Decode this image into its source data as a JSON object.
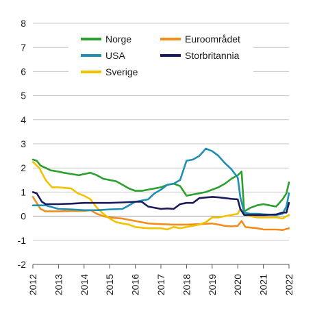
{
  "chart_data": {
    "type": "line",
    "title": "",
    "xlabel": "",
    "ylabel": "",
    "xlim": [
      2012,
      2022
    ],
    "ylim": [
      -2,
      8
    ],
    "x_ticks": [
      "2012",
      "2013",
      "2014",
      "2015",
      "2016",
      "2017",
      "2018",
      "2019",
      "2020",
      "2021",
      "2022"
    ],
    "y_ticks": [
      "-2",
      "-1",
      "0",
      "1",
      "2",
      "3",
      "4",
      "5",
      "6",
      "7",
      "8"
    ],
    "grid": "horizontal",
    "legend_position": "top",
    "series": [
      {
        "name": "Norge",
        "color": "#2ca02c",
        "points": [
          [
            2012.0,
            2.35
          ],
          [
            2012.15,
            2.3
          ],
          [
            2012.3,
            2.1
          ],
          [
            2012.5,
            2.0
          ],
          [
            2012.7,
            1.9
          ],
          [
            2013.0,
            1.85
          ],
          [
            2013.2,
            1.8
          ],
          [
            2013.5,
            1.75
          ],
          [
            2013.8,
            1.7
          ],
          [
            2014.0,
            1.75
          ],
          [
            2014.25,
            1.8
          ],
          [
            2014.5,
            1.7
          ],
          [
            2014.75,
            1.55
          ],
          [
            2015.0,
            1.5
          ],
          [
            2015.25,
            1.45
          ],
          [
            2015.5,
            1.3
          ],
          [
            2015.75,
            1.15
          ],
          [
            2016.0,
            1.05
          ],
          [
            2016.25,
            1.05
          ],
          [
            2016.5,
            1.1
          ],
          [
            2016.75,
            1.15
          ],
          [
            2017.0,
            1.2
          ],
          [
            2017.25,
            1.3
          ],
          [
            2017.5,
            1.35
          ],
          [
            2017.75,
            1.25
          ],
          [
            2018.0,
            0.85
          ],
          [
            2018.25,
            0.9
          ],
          [
            2018.5,
            0.95
          ],
          [
            2018.75,
            1.0
          ],
          [
            2019.0,
            1.1
          ],
          [
            2019.25,
            1.2
          ],
          [
            2019.5,
            1.35
          ],
          [
            2019.75,
            1.55
          ],
          [
            2020.0,
            1.7
          ],
          [
            2020.15,
            1.85
          ],
          [
            2020.25,
            0.2
          ],
          [
            2020.5,
            0.35
          ],
          [
            2020.75,
            0.45
          ],
          [
            2021.0,
            0.5
          ],
          [
            2021.25,
            0.45
          ],
          [
            2021.5,
            0.4
          ],
          [
            2021.75,
            0.7
          ],
          [
            2021.9,
            0.95
          ],
          [
            2022.0,
            1.4
          ]
        ]
      },
      {
        "name": "USA",
        "color": "#1f8fb3",
        "points": [
          [
            2012.0,
            0.45
          ],
          [
            2012.5,
            0.45
          ],
          [
            2013.0,
            0.3
          ],
          [
            2013.5,
            0.28
          ],
          [
            2014.0,
            0.25
          ],
          [
            2014.5,
            0.25
          ],
          [
            2015.0,
            0.28
          ],
          [
            2015.5,
            0.3
          ],
          [
            2015.75,
            0.45
          ],
          [
            2016.0,
            0.6
          ],
          [
            2016.5,
            0.7
          ],
          [
            2016.75,
            0.95
          ],
          [
            2017.0,
            1.1
          ],
          [
            2017.25,
            1.3
          ],
          [
            2017.5,
            1.35
          ],
          [
            2017.75,
            1.5
          ],
          [
            2018.0,
            2.3
          ],
          [
            2018.25,
            2.35
          ],
          [
            2018.5,
            2.5
          ],
          [
            2018.75,
            2.8
          ],
          [
            2019.0,
            2.7
          ],
          [
            2019.25,
            2.5
          ],
          [
            2019.5,
            2.2
          ],
          [
            2019.75,
            1.95
          ],
          [
            2020.0,
            1.6
          ],
          [
            2020.1,
            0.8
          ],
          [
            2020.25,
            0.15
          ],
          [
            2020.5,
            0.1
          ],
          [
            2020.75,
            0.1
          ],
          [
            2021.0,
            0.08
          ],
          [
            2021.5,
            0.05
          ],
          [
            2021.75,
            0.1
          ],
          [
            2021.9,
            0.4
          ],
          [
            2022.0,
            0.95
          ]
        ]
      },
      {
        "name": "Sverige",
        "color": "#f2c200",
        "points": [
          [
            2012.0,
            2.25
          ],
          [
            2012.25,
            2.0
          ],
          [
            2012.5,
            1.5
          ],
          [
            2012.75,
            1.2
          ],
          [
            2013.0,
            1.2
          ],
          [
            2013.5,
            1.15
          ],
          [
            2013.75,
            0.95
          ],
          [
            2014.0,
            0.85
          ],
          [
            2014.25,
            0.7
          ],
          [
            2014.5,
            0.35
          ],
          [
            2014.75,
            0.1
          ],
          [
            2015.0,
            -0.1
          ],
          [
            2015.25,
            -0.25
          ],
          [
            2015.5,
            -0.3
          ],
          [
            2015.75,
            -0.35
          ],
          [
            2016.0,
            -0.45
          ],
          [
            2016.5,
            -0.5
          ],
          [
            2017.0,
            -0.5
          ],
          [
            2017.25,
            -0.55
          ],
          [
            2017.5,
            -0.45
          ],
          [
            2017.75,
            -0.5
          ],
          [
            2018.0,
            -0.45
          ],
          [
            2018.25,
            -0.4
          ],
          [
            2018.5,
            -0.35
          ],
          [
            2018.75,
            -0.25
          ],
          [
            2019.0,
            -0.05
          ],
          [
            2019.25,
            -0.05
          ],
          [
            2019.5,
            0.0
          ],
          [
            2019.75,
            0.05
          ],
          [
            2020.0,
            0.1
          ],
          [
            2020.1,
            0.3
          ],
          [
            2020.25,
            0.1
          ],
          [
            2020.5,
            0.0
          ],
          [
            2020.75,
            -0.05
          ],
          [
            2021.0,
            -0.05
          ],
          [
            2021.5,
            -0.05
          ],
          [
            2021.75,
            -0.1
          ],
          [
            2022.0,
            0.05
          ]
        ]
      },
      {
        "name": "Euroområdet",
        "color": "#f28c1a",
        "points": [
          [
            2012.0,
            0.8
          ],
          [
            2012.15,
            0.55
          ],
          [
            2012.3,
            0.3
          ],
          [
            2012.5,
            0.2
          ],
          [
            2013.0,
            0.2
          ],
          [
            2013.5,
            0.22
          ],
          [
            2014.0,
            0.22
          ],
          [
            2014.25,
            0.25
          ],
          [
            2014.5,
            0.1
          ],
          [
            2014.75,
            0.0
          ],
          [
            2015.0,
            -0.05
          ],
          [
            2015.5,
            -0.1
          ],
          [
            2015.75,
            -0.15
          ],
          [
            2016.0,
            -0.2
          ],
          [
            2016.25,
            -0.25
          ],
          [
            2016.5,
            -0.3
          ],
          [
            2017.0,
            -0.33
          ],
          [
            2017.5,
            -0.35
          ],
          [
            2018.0,
            -0.35
          ],
          [
            2018.5,
            -0.33
          ],
          [
            2019.0,
            -0.3
          ],
          [
            2019.25,
            -0.35
          ],
          [
            2019.5,
            -0.4
          ],
          [
            2019.75,
            -0.42
          ],
          [
            2020.0,
            -0.4
          ],
          [
            2020.15,
            -0.2
          ],
          [
            2020.3,
            -0.45
          ],
          [
            2020.75,
            -0.5
          ],
          [
            2021.0,
            -0.55
          ],
          [
            2021.5,
            -0.55
          ],
          [
            2021.75,
            -0.57
          ],
          [
            2022.0,
            -0.5
          ]
        ]
      },
      {
        "name": "Storbritannia",
        "color": "#1c1a5e",
        "points": [
          [
            2012.0,
            1.0
          ],
          [
            2012.15,
            0.95
          ],
          [
            2012.35,
            0.6
          ],
          [
            2012.5,
            0.5
          ],
          [
            2013.0,
            0.5
          ],
          [
            2013.5,
            0.52
          ],
          [
            2014.0,
            0.55
          ],
          [
            2014.5,
            0.55
          ],
          [
            2015.0,
            0.55
          ],
          [
            2015.5,
            0.57
          ],
          [
            2016.0,
            0.6
          ],
          [
            2016.25,
            0.6
          ],
          [
            2016.5,
            0.4
          ],
          [
            2017.0,
            0.3
          ],
          [
            2017.25,
            0.32
          ],
          [
            2017.5,
            0.3
          ],
          [
            2017.75,
            0.5
          ],
          [
            2018.0,
            0.55
          ],
          [
            2018.25,
            0.55
          ],
          [
            2018.5,
            0.75
          ],
          [
            2019.0,
            0.8
          ],
          [
            2019.25,
            0.78
          ],
          [
            2019.5,
            0.75
          ],
          [
            2019.75,
            0.72
          ],
          [
            2020.0,
            0.7
          ],
          [
            2020.1,
            0.3
          ],
          [
            2020.25,
            0.05
          ],
          [
            2020.5,
            0.05
          ],
          [
            2020.75,
            0.05
          ],
          [
            2021.0,
            0.05
          ],
          [
            2021.5,
            0.07
          ],
          [
            2021.75,
            0.15
          ],
          [
            2021.9,
            0.15
          ],
          [
            2022.0,
            0.55
          ]
        ]
      }
    ]
  }
}
